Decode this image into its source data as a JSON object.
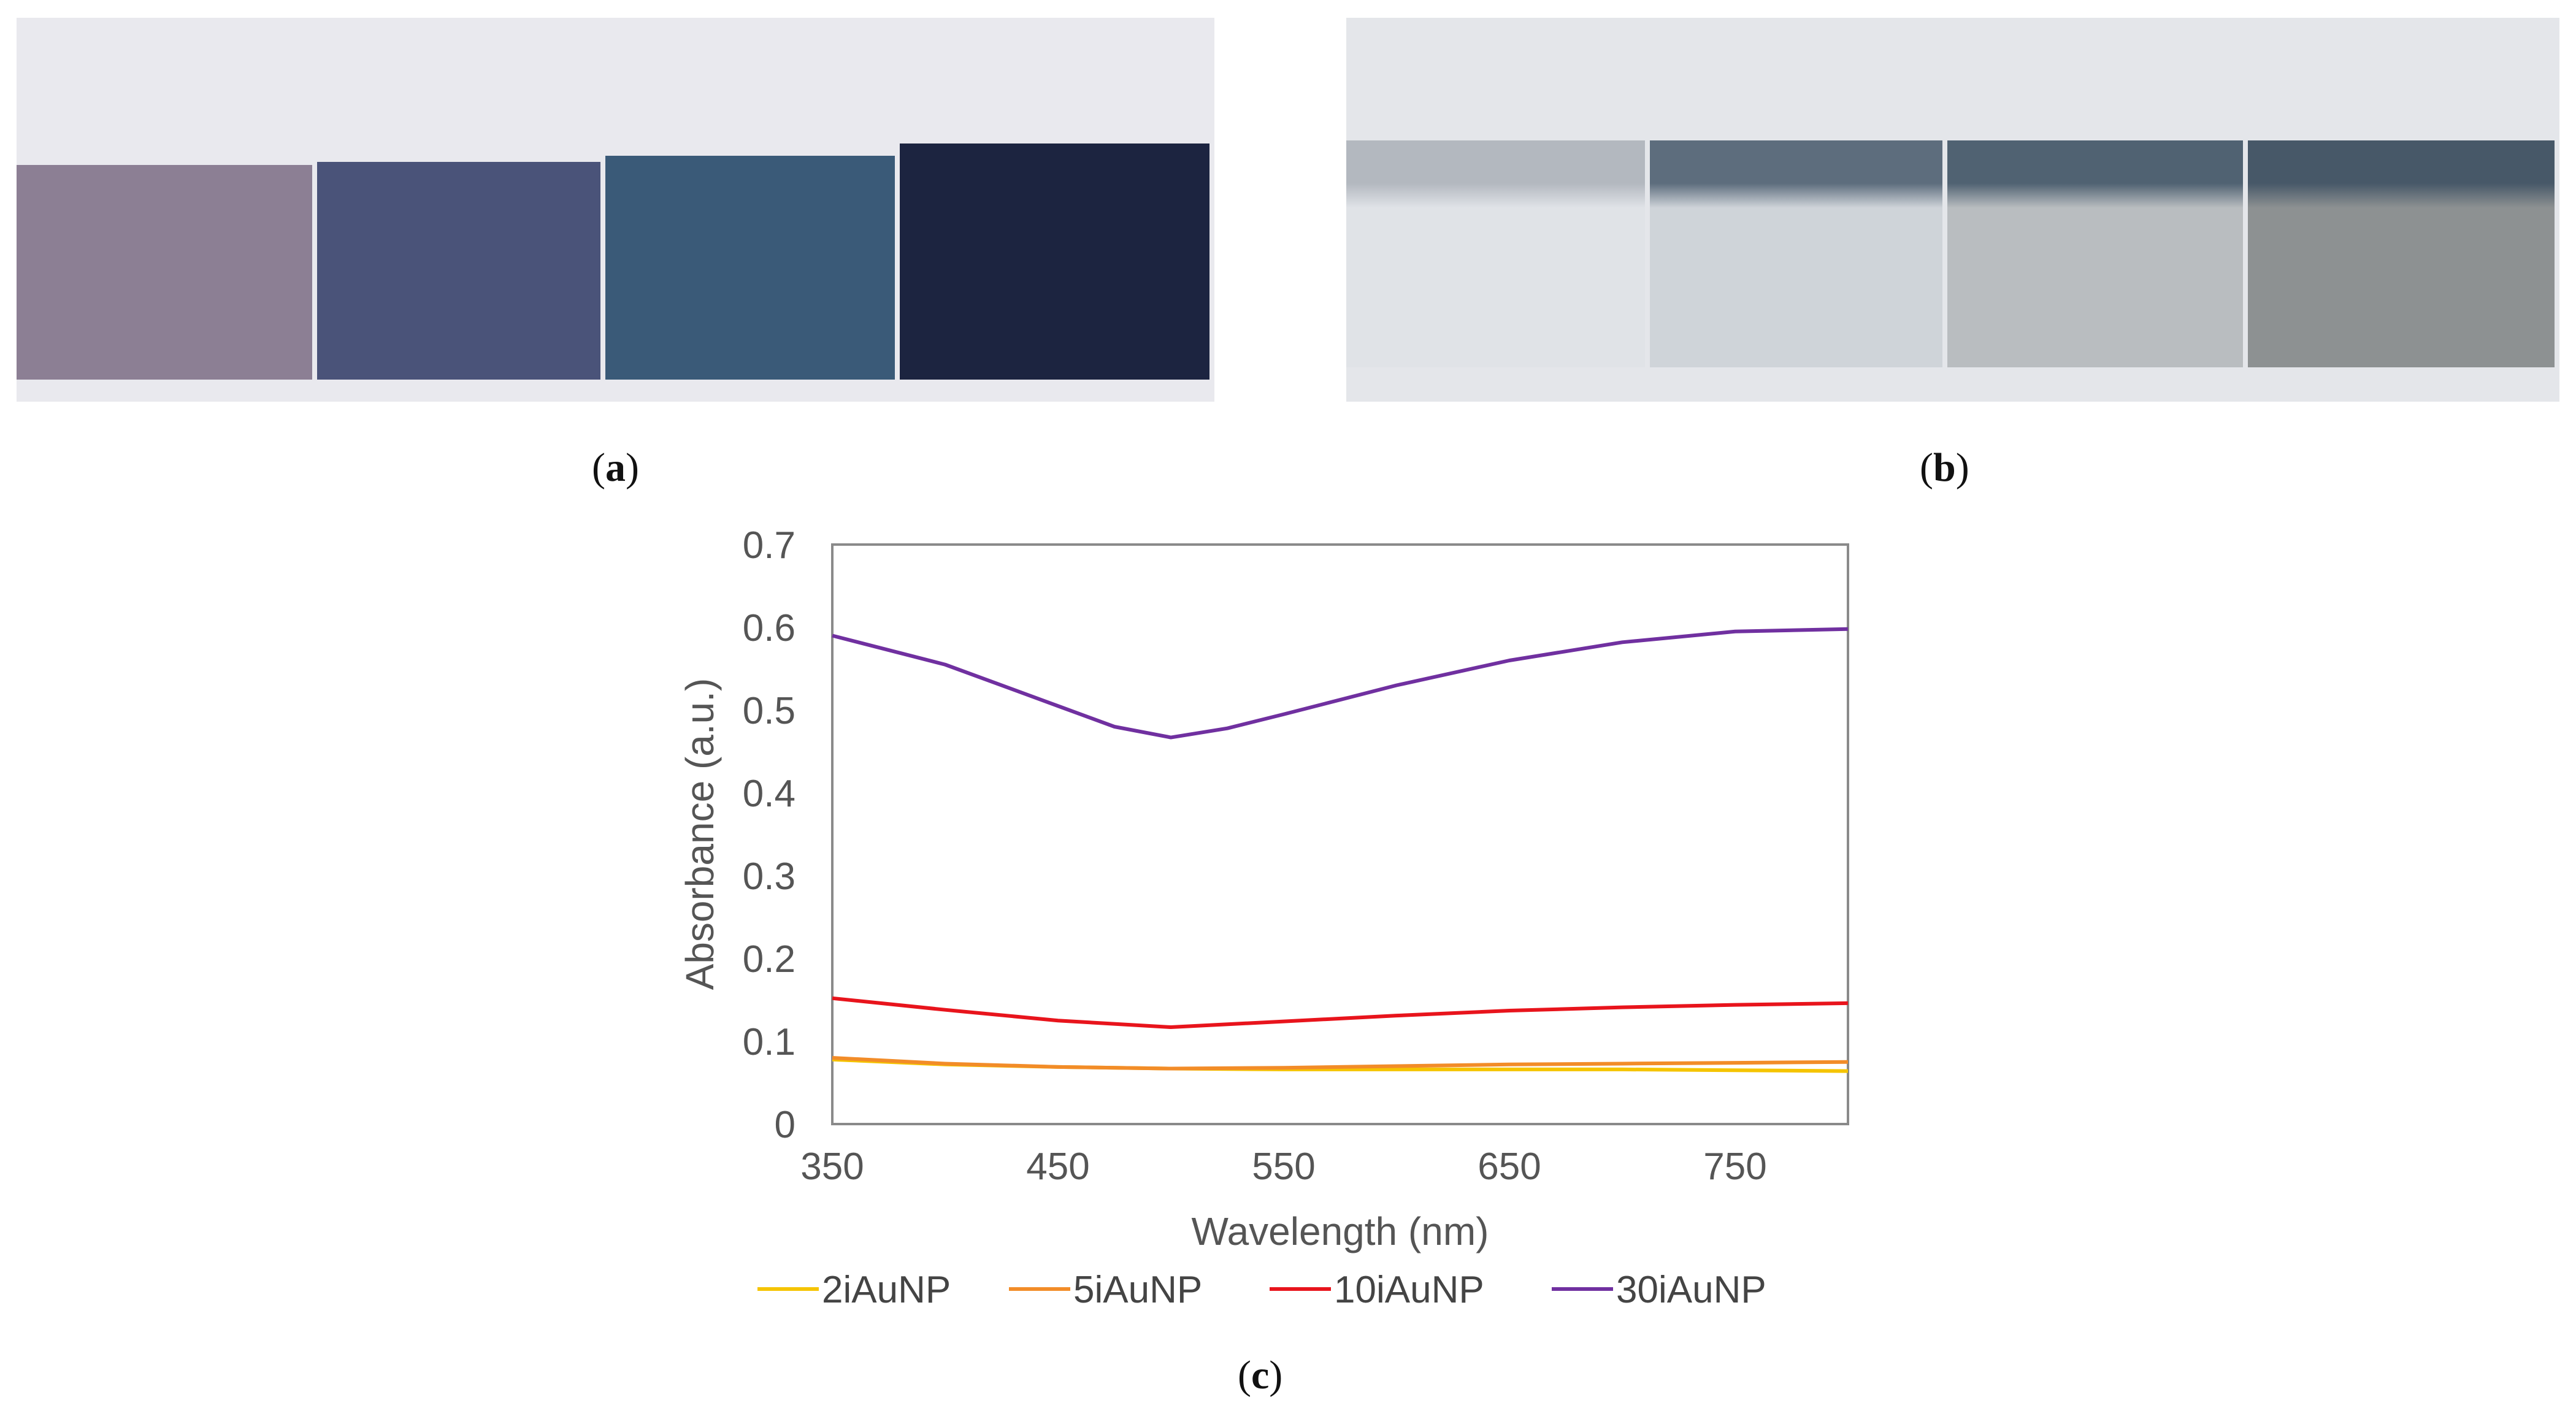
{
  "panels": {
    "a_open": "(",
    "a_letter": "a",
    "a_close": ")",
    "b_open": "(",
    "b_letter": "b",
    "b_close": ")",
    "c_open": "(",
    "c_letter": "c",
    "c_close": ")"
  },
  "photo_a": {
    "samples": [
      {
        "color": "#8c7f94"
      },
      {
        "color": "#4a5379"
      },
      {
        "color": "#3a5a78"
      },
      {
        "color": "#1c2440"
      }
    ]
  },
  "photo_b": {
    "samples": [
      {
        "band": "#b3b8bf",
        "body": "#e0e3e7"
      },
      {
        "band": "#5d6d7d",
        "body": "#cfd4d9"
      },
      {
        "band": "#506272",
        "body": "#b9bdc0"
      },
      {
        "band": "#475868",
        "body": "#8d9192"
      }
    ]
  },
  "chart_data": {
    "type": "line",
    "xlabel": "Wavelength (nm)",
    "ylabel": "Absorbance (a.u.)",
    "xlim": [
      350,
      800
    ],
    "ylim": [
      0,
      0.7
    ],
    "xticks": [
      350,
      450,
      550,
      650,
      750
    ],
    "yticks": [
      0,
      0.1,
      0.2,
      0.3,
      0.4,
      0.5,
      0.6,
      0.7
    ],
    "ytick_labels": [
      "0",
      "0.1",
      "0.2",
      "0.3",
      "0.4",
      "0.5",
      "0.6",
      "0.7"
    ],
    "grid": false,
    "legend_position": "bottom",
    "series": [
      {
        "name": "2iAuNP",
        "color": "#f5c400",
        "x": [
          350,
          400,
          450,
          500,
          550,
          600,
          650,
          700,
          750,
          800
        ],
        "y": [
          0.078,
          0.072,
          0.069,
          0.067,
          0.066,
          0.066,
          0.066,
          0.066,
          0.065,
          0.064
        ]
      },
      {
        "name": "5iAuNP",
        "color": "#f28c28",
        "x": [
          350,
          400,
          450,
          500,
          550,
          600,
          650,
          700,
          750,
          800
        ],
        "y": [
          0.08,
          0.073,
          0.069,
          0.067,
          0.068,
          0.07,
          0.072,
          0.073,
          0.074,
          0.075
        ]
      },
      {
        "name": "10iAuNP",
        "color": "#e8141c",
        "x": [
          350,
          400,
          450,
          500,
          550,
          600,
          650,
          700,
          750,
          800
        ],
        "y": [
          0.152,
          0.138,
          0.125,
          0.117,
          0.124,
          0.131,
          0.137,
          0.141,
          0.144,
          0.146
        ]
      },
      {
        "name": "30iAuNP",
        "color": "#7030a0",
        "x": [
          350,
          400,
          450,
          475,
          500,
          525,
          550,
          600,
          650,
          700,
          750,
          800
        ],
        "y": [
          0.59,
          0.555,
          0.505,
          0.48,
          0.467,
          0.478,
          0.495,
          0.53,
          0.56,
          0.582,
          0.595,
          0.598
        ]
      }
    ]
  }
}
